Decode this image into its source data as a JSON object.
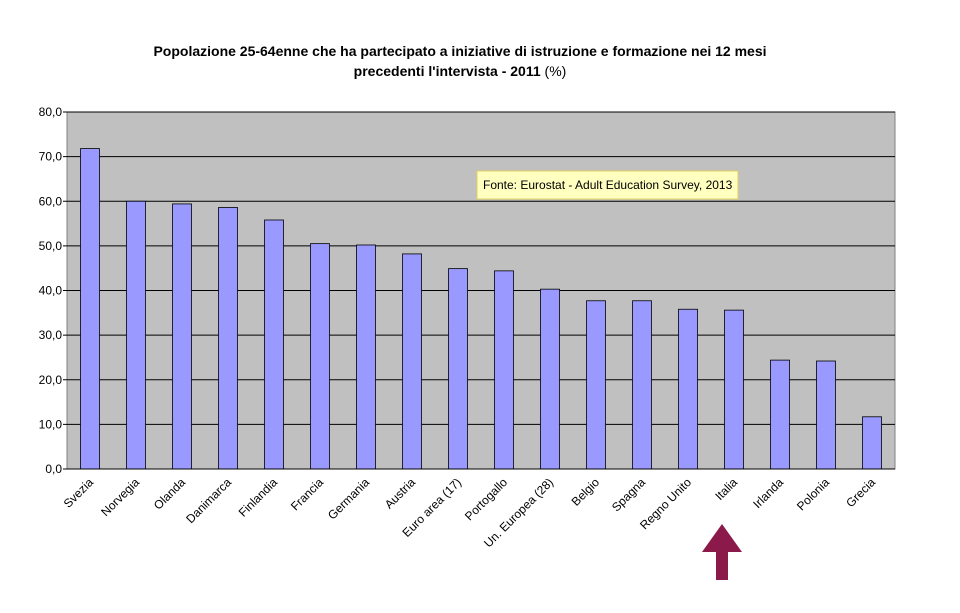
{
  "chart_data": {
    "type": "bar",
    "title": [
      "Popolazione 25-64enne che ha partecipato a  iniziative di istruzione e formazione nei 12 mesi",
      "precedenti l'intervista - 2011"
    ],
    "title_unit": "(%)",
    "annotation": "Fonte: Eurostat - Adult Education Survey, 2013",
    "categories": [
      "Svezia",
      "Norvegia",
      "Olanda",
      "Danimarca",
      "Finlandia",
      "Francia",
      "Germania",
      "Austria",
      "Euro area (17)",
      "Portogallo",
      "Un. Europea (28)",
      "Belgio",
      "Spagna",
      "Regno Unito",
      "Italia",
      "Irlanda",
      "Polonia",
      "Grecia"
    ],
    "values": [
      71.8,
      60.0,
      59.4,
      58.6,
      55.8,
      50.5,
      50.2,
      48.2,
      44.9,
      44.4,
      40.3,
      37.7,
      37.7,
      35.8,
      35.6,
      24.4,
      24.2,
      11.7
    ],
    "color": "#9999ff",
    "ylim": [
      0,
      80
    ],
    "yticks": [
      {
        "value": 0,
        "label": "0,0"
      },
      {
        "value": 10,
        "label": "10,0"
      },
      {
        "value": 20,
        "label": "20,0"
      },
      {
        "value": 30,
        "label": "30,0"
      },
      {
        "value": 40,
        "label": "40,0"
      },
      {
        "value": 50,
        "label": "50,0"
      },
      {
        "value": 60,
        "label": "60,0"
      },
      {
        "value": 70,
        "label": "70,0"
      },
      {
        "value": 80,
        "label": "80,0"
      }
    ],
    "grid": true
  }
}
